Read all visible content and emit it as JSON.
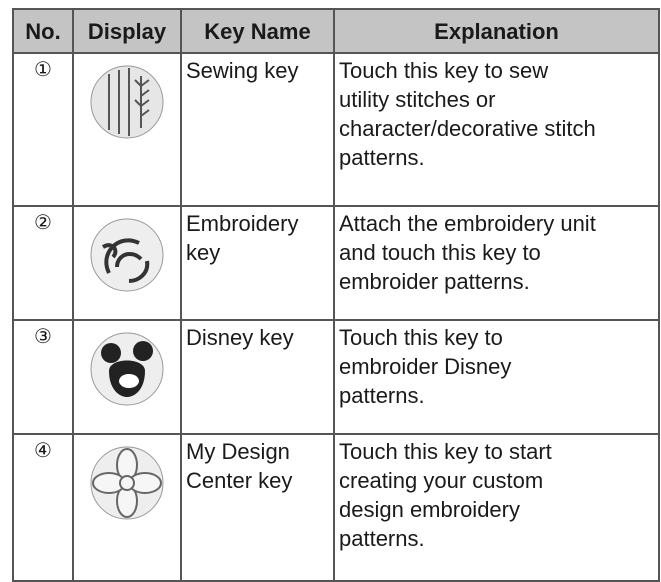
{
  "table": {
    "header": [
      "No.",
      "Display",
      "Key Name",
      "Explanation"
    ],
    "rows": [
      {
        "no": "①",
        "key_name": [
          "Sewing key"
        ],
        "explanation": [
          "Touch this key to sew",
          "utility stitches or",
          "character/decorative stitch",
          "patterns."
        ]
      },
      {
        "no": "②",
        "key_name": [
          "Embroidery",
          "key"
        ],
        "explanation": [
          "Attach the embroidery unit",
          "and touch this key to",
          "embroider patterns."
        ]
      },
      {
        "no": "③",
        "key_name": [
          "Disney key"
        ],
        "explanation": [
          "Touch this key to",
          "embroider Disney",
          "patterns."
        ]
      },
      {
        "no": "④",
        "key_name": [
          "My Design",
          "Center key"
        ],
        "explanation": [
          "Touch this key to start",
          "creating your custom",
          "design embroidery",
          "patterns."
        ]
      }
    ]
  }
}
